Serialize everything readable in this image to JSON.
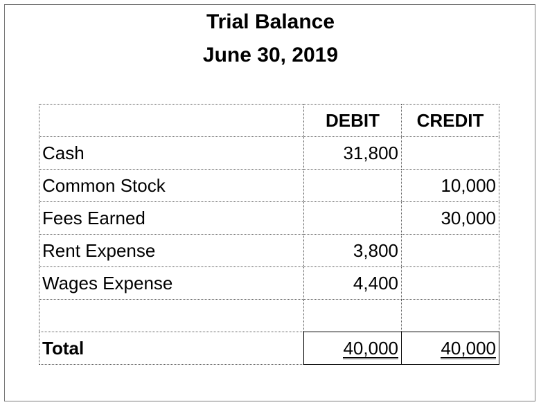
{
  "header": {
    "title": "Trial Balance",
    "date": "June 30, 2019"
  },
  "table": {
    "columns": {
      "account": "",
      "debit": "DEBIT",
      "credit": "CREDIT"
    },
    "rows": [
      {
        "account": "Cash",
        "debit": "31,800",
        "credit": ""
      },
      {
        "account": "Common Stock",
        "debit": "",
        "credit": "10,000"
      },
      {
        "account": "Fees Earned",
        "debit": "",
        "credit": "30,000"
      },
      {
        "account": "Rent Expense",
        "debit": "3,800",
        "credit": ""
      },
      {
        "account": "Wages Expense",
        "debit": "4,400",
        "credit": ""
      },
      {
        "account": "",
        "debit": "",
        "credit": ""
      }
    ],
    "total": {
      "label": "Total",
      "debit": "40,000",
      "credit": "40,000"
    }
  }
}
